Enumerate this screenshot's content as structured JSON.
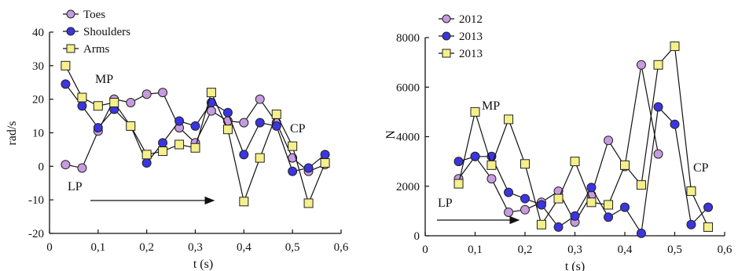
{
  "chart_data": [
    {
      "type": "line",
      "xlabel": "t (s)",
      "ylabel": "rad/s",
      "xlim": [
        0,
        0.6
      ],
      "ylim": [
        -20,
        40
      ],
      "x_ticks": [
        "0",
        "0,1",
        "0,2",
        "0,3",
        "0,4",
        "0,5",
        "0,6"
      ],
      "y_ticks": [
        "-20",
        "-10",
        "0",
        "10",
        "20",
        "30",
        "40"
      ],
      "legend_position": "top-left",
      "annotations": [
        "MP",
        "LP",
        "CP"
      ],
      "series": [
        {
          "name": "Toes",
          "marker": "circle",
          "color": "#c79be0",
          "x": [
            0.033,
            0.067,
            0.1,
            0.133,
            0.167,
            0.2,
            0.233,
            0.267,
            0.3,
            0.333,
            0.367,
            0.4,
            0.433,
            0.467,
            0.5,
            0.533,
            0.567
          ],
          "y": [
            0.5,
            -0.5,
            10.5,
            20,
            19,
            21.5,
            22,
            11.5,
            7,
            16.5,
            13.5,
            13,
            20,
            13,
            2.5,
            -1.5,
            0.5
          ]
        },
        {
          "name": "Shoulders",
          "marker": "circle",
          "color": "#3b35e0",
          "x": [
            0.033,
            0.067,
            0.1,
            0.133,
            0.167,
            0.2,
            0.233,
            0.267,
            0.3,
            0.333,
            0.367,
            0.4,
            0.433,
            0.467,
            0.5,
            0.533,
            0.567
          ],
          "y": [
            24.5,
            18,
            11.5,
            17,
            12,
            1,
            7,
            13.5,
            12,
            19,
            16,
            3.5,
            13,
            12,
            -1.5,
            -0.5,
            3.5
          ]
        },
        {
          "name": "Arms",
          "marker": "square",
          "color": "#f5f08a",
          "x": [
            0.033,
            0.067,
            0.1,
            0.133,
            0.167,
            0.2,
            0.233,
            0.267,
            0.3,
            0.333,
            0.367,
            0.4,
            0.433,
            0.467,
            0.5,
            0.533,
            0.567
          ],
          "y": [
            30,
            20.5,
            18,
            19,
            12,
            3.5,
            4.5,
            6.5,
            5.5,
            22,
            11,
            -10.5,
            2.5,
            15.5,
            6,
            -11,
            1
          ]
        }
      ]
    },
    {
      "type": "line",
      "xlabel": "t (s)",
      "ylabel": "N",
      "xlim": [
        0,
        0.6
      ],
      "ylim": [
        0,
        8000
      ],
      "x_ticks": [
        "0",
        "0,1",
        "0,2",
        "0,3",
        "0,4",
        "0,5",
        "0,6"
      ],
      "y_ticks": [
        "0",
        "2000",
        "4000",
        "6000",
        "8000"
      ],
      "legend_position": "top-left",
      "annotations": [
        "MP",
        "LP",
        "CP"
      ],
      "series": [
        {
          "name": "2012",
          "marker": "circle",
          "color": "#c79be0",
          "x": [
            0.067,
            0.1,
            0.133,
            0.167,
            0.2,
            0.233,
            0.267,
            0.3,
            0.333,
            0.367,
            0.4,
            0.433,
            0.467
          ],
          "y": [
            2300,
            3200,
            2300,
            950,
            1050,
            1350,
            1800,
            550,
            1650,
            3850,
            2800,
            6900,
            3300
          ]
        },
        {
          "name": "2013",
          "marker": "circle",
          "color": "#3b35e0",
          "x": [
            0.067,
            0.1,
            0.133,
            0.167,
            0.2,
            0.233,
            0.267,
            0.3,
            0.333,
            0.367,
            0.4,
            0.433,
            0.467,
            0.5,
            0.533,
            0.567
          ],
          "y": [
            3000,
            3200,
            3200,
            1750,
            1500,
            1250,
            350,
            800,
            1950,
            750,
            1150,
            100,
            5200,
            4500,
            450,
            1150
          ]
        },
        {
          "name": "2013",
          "marker": "square",
          "color": "#f5f08a",
          "x": [
            0.067,
            0.1,
            0.133,
            0.167,
            0.2,
            0.233,
            0.267,
            0.3,
            0.333,
            0.367,
            0.4,
            0.433,
            0.467,
            0.5,
            0.533,
            0.567
          ],
          "y": [
            2100,
            5000,
            2850,
            4700,
            2900,
            450,
            1500,
            3000,
            1350,
            1250,
            2850,
            2050,
            6900,
            7650,
            1800,
            350
          ]
        }
      ]
    }
  ]
}
